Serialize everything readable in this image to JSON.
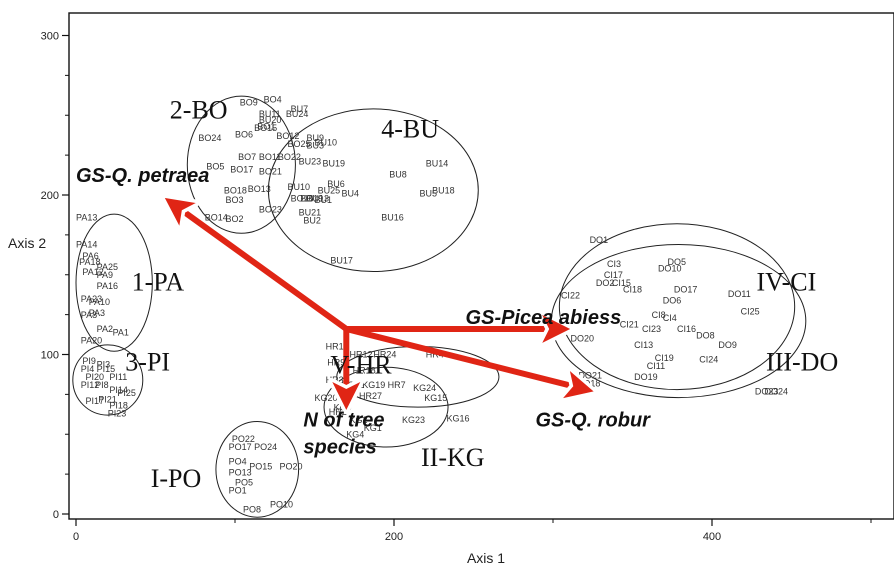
{
  "chart_data": {
    "type": "scatter",
    "xlabel": "Axis 1",
    "ylabel": "Axis 2",
    "xlim": [
      0,
      510
    ],
    "ylim": [
      0,
      310
    ],
    "xticks": [
      0,
      200,
      400
    ],
    "yticks": [
      0,
      100,
      200,
      300
    ],
    "grid": false,
    "points": [
      {
        "label": "BO4",
        "x": 118,
        "y": 258
      },
      {
        "label": "BO9",
        "x": 103,
        "y": 256
      },
      {
        "label": "BU7",
        "x": 135,
        "y": 252
      },
      {
        "label": "BU11",
        "x": 115,
        "y": 249
      },
      {
        "label": "BU24",
        "x": 132,
        "y": 249
      },
      {
        "label": "BU20",
        "x": 115,
        "y": 245
      },
      {
        "label": "BO15",
        "x": 112,
        "y": 240
      },
      {
        "label": "BO1",
        "x": 114,
        "y": 241
      },
      {
        "label": "BO6",
        "x": 100,
        "y": 236
      },
      {
        "label": "BO12",
        "x": 126,
        "y": 235
      },
      {
        "label": "BO24",
        "x": 77,
        "y": 234
      },
      {
        "label": "BO25",
        "x": 133,
        "y": 230
      },
      {
        "label": "BO7",
        "x": 102,
        "y": 222
      },
      {
        "label": "BO11",
        "x": 115,
        "y": 222
      },
      {
        "label": "BO22",
        "x": 127,
        "y": 222
      },
      {
        "label": "BO5",
        "x": 82,
        "y": 216
      },
      {
        "label": "BO17",
        "x": 97,
        "y": 214
      },
      {
        "label": "BO21",
        "x": 115,
        "y": 213
      },
      {
        "label": "BO18",
        "x": 93,
        "y": 201
      },
      {
        "label": "BO13",
        "x": 108,
        "y": 202
      },
      {
        "label": "BO3",
        "x": 94,
        "y": 195
      },
      {
        "label": "BO23",
        "x": 115,
        "y": 189
      },
      {
        "label": "BO2",
        "x": 94,
        "y": 183
      },
      {
        "label": "BO14",
        "x": 81,
        "y": 184
      },
      {
        "label": "BU9",
        "x": 145,
        "y": 234
      },
      {
        "label": "BU10",
        "x": 150,
        "y": 231
      },
      {
        "label": "BU3",
        "x": 145,
        "y": 229
      },
      {
        "label": "BU23",
        "x": 140,
        "y": 219
      },
      {
        "label": "BU19",
        "x": 155,
        "y": 218
      },
      {
        "label": "BU14",
        "x": 220,
        "y": 218
      },
      {
        "label": "BU8",
        "x": 197,
        "y": 211
      },
      {
        "label": "BU6",
        "x": 158,
        "y": 205
      },
      {
        "label": "BU25",
        "x": 152,
        "y": 201
      },
      {
        "label": "BU4",
        "x": 167,
        "y": 199
      },
      {
        "label": "BU5",
        "x": 216,
        "y": 199
      },
      {
        "label": "BU18",
        "x": 224,
        "y": 201
      },
      {
        "label": "BU10",
        "x": 133,
        "y": 203
      },
      {
        "label": "BU1",
        "x": 150,
        "y": 195
      },
      {
        "label": "BO16",
        "x": 135,
        "y": 196
      },
      {
        "label": "BO19",
        "x": 141,
        "y": 196
      },
      {
        "label": "BU13",
        "x": 145,
        "y": 196
      },
      {
        "label": "BU21",
        "x": 140,
        "y": 187
      },
      {
        "label": "BU2",
        "x": 143,
        "y": 182
      },
      {
        "label": "BU16",
        "x": 192,
        "y": 184
      },
      {
        "label": "BU17",
        "x": 160,
        "y": 157
      },
      {
        "label": "PA13",
        "x": 0,
        "y": 184
      },
      {
        "label": "PA14",
        "x": 0,
        "y": 167
      },
      {
        "label": "PA6",
        "x": 4,
        "y": 160
      },
      {
        "label": "PA18",
        "x": 2,
        "y": 156
      },
      {
        "label": "PA25",
        "x": 13,
        "y": 153
      },
      {
        "label": "PA12",
        "x": 4,
        "y": 150
      },
      {
        "label": "PA9",
        "x": 13,
        "y": 148
      },
      {
        "label": "PA16",
        "x": 13,
        "y": 141
      },
      {
        "label": "PA23",
        "x": 3,
        "y": 133
      },
      {
        "label": "PA10",
        "x": 8,
        "y": 131
      },
      {
        "label": "PA8",
        "x": 3,
        "y": 123
      },
      {
        "label": "PA3",
        "x": 8,
        "y": 124
      },
      {
        "label": "PA2",
        "x": 13,
        "y": 114
      },
      {
        "label": "PA1",
        "x": 23,
        "y": 112
      },
      {
        "label": "PA20",
        "x": 3,
        "y": 107
      },
      {
        "label": "PI9",
        "x": 4,
        "y": 94
      },
      {
        "label": "PI3",
        "x": 13,
        "y": 92
      },
      {
        "label": "PI4",
        "x": 3,
        "y": 89
      },
      {
        "label": "PI15",
        "x": 13,
        "y": 89
      },
      {
        "label": "PI20",
        "x": 6,
        "y": 84
      },
      {
        "label": "PI11",
        "x": 21,
        "y": 84
      },
      {
        "label": "PI12",
        "x": 3,
        "y": 79
      },
      {
        "label": "PI8",
        "x": 12,
        "y": 79
      },
      {
        "label": "PI14",
        "x": 21,
        "y": 76
      },
      {
        "label": "PI25",
        "x": 26,
        "y": 74
      },
      {
        "label": "PI17",
        "x": 6,
        "y": 69
      },
      {
        "label": "PI21",
        "x": 14,
        "y": 70
      },
      {
        "label": "PI18",
        "x": 21,
        "y": 66
      },
      {
        "label": "PI23",
        "x": 20,
        "y": 61
      },
      {
        "label": "HR1",
        "x": 157,
        "y": 103
      },
      {
        "label": "HR12",
        "x": 172,
        "y": 98
      },
      {
        "label": "HR24",
        "x": 187,
        "y": 98
      },
      {
        "label": "HR4",
        "x": 220,
        "y": 98
      },
      {
        "label": "HR9",
        "x": 158,
        "y": 93
      },
      {
        "label": "HR18",
        "x": 174,
        "y": 88
      },
      {
        "label": "HR3",
        "x": 157,
        "y": 82
      },
      {
        "label": "KG12",
        "x": 167,
        "y": 79
      },
      {
        "label": "KG19",
        "x": 180,
        "y": 79
      },
      {
        "label": "HR7",
        "x": 196,
        "y": 79
      },
      {
        "label": "KG24",
        "x": 212,
        "y": 77
      },
      {
        "label": "KG20",
        "x": 150,
        "y": 71
      },
      {
        "label": "HR27",
        "x": 178,
        "y": 72
      },
      {
        "label": "KG15",
        "x": 219,
        "y": 71
      },
      {
        "label": "KG9",
        "x": 162,
        "y": 65
      },
      {
        "label": "HR2",
        "x": 159,
        "y": 62
      },
      {
        "label": "KG2",
        "x": 172,
        "y": 57
      },
      {
        "label": "KG23",
        "x": 205,
        "y": 57
      },
      {
        "label": "KG16",
        "x": 233,
        "y": 58
      },
      {
        "label": "KG4",
        "x": 170,
        "y": 48
      },
      {
        "label": "KG1",
        "x": 181,
        "y": 52
      },
      {
        "label": "DO1",
        "x": 323,
        "y": 170
      },
      {
        "label": "DO5",
        "x": 372,
        "y": 156
      },
      {
        "label": "CI3",
        "x": 334,
        "y": 155
      },
      {
        "label": "DO10",
        "x": 366,
        "y": 152
      },
      {
        "label": "CI17",
        "x": 332,
        "y": 148
      },
      {
        "label": "DO2",
        "x": 327,
        "y": 143
      },
      {
        "label": "CI15",
        "x": 337,
        "y": 143
      },
      {
        "label": "CI18",
        "x": 344,
        "y": 139
      },
      {
        "label": "DO17",
        "x": 376,
        "y": 139
      },
      {
        "label": "DO11",
        "x": 410,
        "y": 136
      },
      {
        "label": "CI22",
        "x": 305,
        "y": 135
      },
      {
        "label": "DO6",
        "x": 369,
        "y": 132
      },
      {
        "label": "CI25",
        "x": 418,
        "y": 125
      },
      {
        "label": "CI8",
        "x": 362,
        "y": 123
      },
      {
        "label": "CI4",
        "x": 369,
        "y": 121
      },
      {
        "label": "CI21",
        "x": 342,
        "y": 117
      },
      {
        "label": "CI23",
        "x": 356,
        "y": 114
      },
      {
        "label": "CI16",
        "x": 378,
        "y": 114
      },
      {
        "label": "DO8",
        "x": 390,
        "y": 110
      },
      {
        "label": "DO20",
        "x": 311,
        "y": 108
      },
      {
        "label": "CI13",
        "x": 351,
        "y": 104
      },
      {
        "label": "DO9",
        "x": 404,
        "y": 104
      },
      {
        "label": "CI19",
        "x": 364,
        "y": 96
      },
      {
        "label": "CI24",
        "x": 392,
        "y": 95
      },
      {
        "label": "CI11",
        "x": 359,
        "y": 91
      },
      {
        "label": "DO21",
        "x": 316,
        "y": 85
      },
      {
        "label": "DO19",
        "x": 351,
        "y": 84
      },
      {
        "label": "DO18",
        "x": 315,
        "y": 80
      },
      {
        "label": "DO23",
        "x": 427,
        "y": 75
      },
      {
        "label": "DO24",
        "x": 433,
        "y": 75
      },
      {
        "label": "PO22",
        "x": 98,
        "y": 45
      },
      {
        "label": "PO17",
        "x": 96,
        "y": 40
      },
      {
        "label": "PO24",
        "x": 112,
        "y": 40
      },
      {
        "label": "PO4",
        "x": 96,
        "y": 31
      },
      {
        "label": "PO15",
        "x": 109,
        "y": 28
      },
      {
        "label": "PO20",
        "x": 128,
        "y": 28
      },
      {
        "label": "PO13",
        "x": 96,
        "y": 24
      },
      {
        "label": "PO5",
        "x": 100,
        "y": 18
      },
      {
        "label": "PO1",
        "x": 96,
        "y": 13
      },
      {
        "label": "PO8",
        "x": 105,
        "y": 1
      },
      {
        "label": "PO10",
        "x": 122,
        "y": 4
      }
    ],
    "groups": [
      {
        "label": "1-PA",
        "cx": 24,
        "cy": 145,
        "rx": 24,
        "ry": 43,
        "label_x": 35,
        "label_y": 140
      },
      {
        "label": "2-BO",
        "cx": 104,
        "cy": 219,
        "rx": 34,
        "ry": 43,
        "label_x": 59,
        "label_y": 248
      },
      {
        "label": "3-PI",
        "cx": 20,
        "cy": 84,
        "rx": 22,
        "ry": 22,
        "label_x": 31,
        "label_y": 90
      },
      {
        "label": "4-BU",
        "cx": 187,
        "cy": 203,
        "rx": 66,
        "ry": 51,
        "label_x": 192,
        "label_y": 236
      },
      {
        "label": "I-PO",
        "cx": 114,
        "cy": 28,
        "rx": 26,
        "ry": 30,
        "label_x": 47,
        "label_y": 17
      },
      {
        "label": "II-KG",
        "cx": 195,
        "cy": 67,
        "rx": 39,
        "ry": 25,
        "label_x": 217,
        "label_y": 30
      },
      {
        "label": "III-DO",
        "cx": 379,
        "cy": 121,
        "rx": 80,
        "ry": 48,
        "label_x": 434,
        "label_y": 90
      },
      {
        "label": "IV-CI",
        "cx": 378,
        "cy": 130,
        "rx": 74,
        "ry": 52,
        "label_x": 428,
        "label_y": 140
      },
      {
        "label": "V-HR",
        "cx": 215,
        "cy": 86,
        "rx": 51,
        "ry": 19,
        "label_x": 160,
        "label_y": 88
      }
    ],
    "vectors": [
      {
        "label": "GS-Q. petraea",
        "x0": 170,
        "y0": 116,
        "x1": 63,
        "y1": 193,
        "label_x": 0,
        "label_y": 208
      },
      {
        "label": "GS-Picea abiess",
        "x0": 170,
        "y0": 116,
        "x1": 302,
        "y1": 116,
        "label_x": 245,
        "label_y": 119
      },
      {
        "label": "GS-Q. robur",
        "x0": 170,
        "y0": 116,
        "x1": 317,
        "y1": 79,
        "label_x": 289,
        "label_y": 55
      },
      {
        "label": "N of tree",
        "x0": 170,
        "y0": 116,
        "x1": 170,
        "y1": 74,
        "label_x": 143,
        "label_y": 55
      },
      {
        "label": "species",
        "x0": 170,
        "y0": 74,
        "x1": 170,
        "y1": 74,
        "label_x": 143,
        "label_y": 38
      }
    ],
    "vector_color": "#e02515"
  }
}
